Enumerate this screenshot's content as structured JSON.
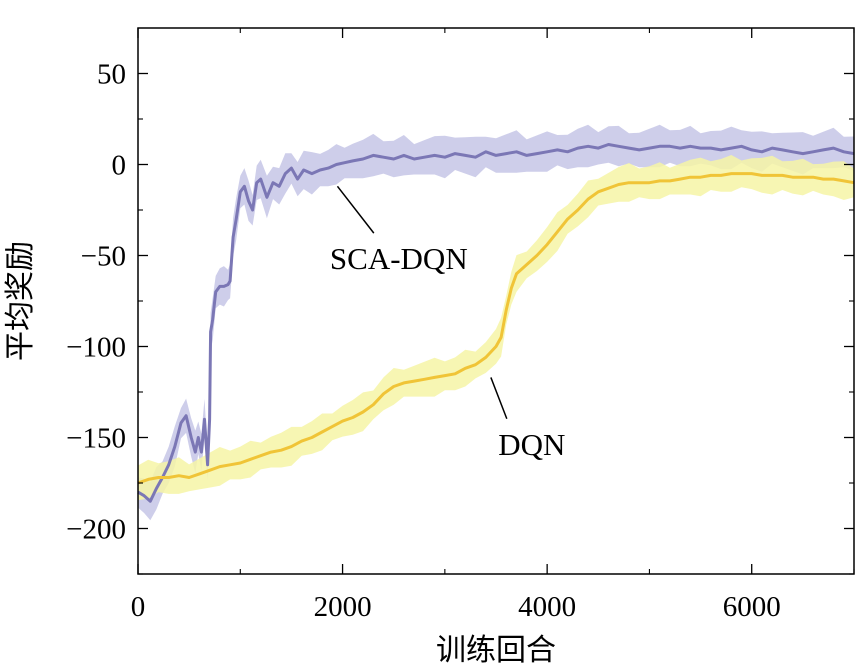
{
  "chart_data": {
    "type": "line",
    "title": "",
    "xlabel": "训练回合",
    "ylabel": "平均奖励",
    "xlim": [
      0,
      7000
    ],
    "ylim": [
      -225,
      75
    ],
    "xticks": [
      0,
      2000,
      4000,
      6000
    ],
    "yticks": [
      50,
      0,
      -50,
      -100,
      -150,
      -200
    ],
    "xtick_labels": [
      "0",
      "2000",
      "4000",
      "6000"
    ],
    "ytick_labels": [
      "50",
      "0",
      "−50",
      "−100",
      "−150",
      "−200"
    ],
    "grid": false,
    "series": [
      {
        "name": "SCA-DQN",
        "color": "#7b77b5",
        "band_color": "#c6c6e6",
        "band_halfwidth": 10,
        "x": [
          0,
          60,
          120,
          180,
          240,
          300,
          360,
          420,
          470,
          520,
          560,
          590,
          620,
          650,
          680,
          700,
          710,
          730,
          760,
          800,
          840,
          880,
          900,
          930,
          960,
          1000,
          1040,
          1080,
          1120,
          1160,
          1200,
          1260,
          1320,
          1380,
          1440,
          1500,
          1560,
          1620,
          1700,
          1780,
          1860,
          1940,
          2020,
          2100,
          2200,
          2300,
          2400,
          2500,
          2600,
          2700,
          2800,
          2900,
          3000,
          3100,
          3200,
          3300,
          3400,
          3500,
          3600,
          3700,
          3800,
          3900,
          4000,
          4100,
          4200,
          4300,
          4400,
          4500,
          4600,
          4700,
          4800,
          4900,
          5000,
          5100,
          5200,
          5300,
          5400,
          5500,
          5600,
          5700,
          5800,
          5900,
          6000,
          6100,
          6200,
          6300,
          6400,
          6500,
          6600,
          6700,
          6800,
          6900,
          7000
        ],
        "y": [
          -180,
          -182,
          -185,
          -178,
          -172,
          -165,
          -155,
          -142,
          -138,
          -150,
          -158,
          -150,
          -158,
          -140,
          -165,
          -140,
          -92,
          -85,
          -70,
          -67,
          -67,
          -66,
          -64,
          -40,
          -30,
          -15,
          -12,
          -20,
          -25,
          -10,
          -8,
          -18,
          -10,
          -12,
          -5,
          -2,
          -8,
          -3,
          -5,
          -3,
          -2,
          0,
          1,
          2,
          3,
          5,
          4,
          3,
          5,
          3,
          4,
          5,
          4,
          6,
          5,
          4,
          7,
          5,
          6,
          7,
          5,
          6,
          7,
          8,
          7,
          9,
          10,
          9,
          11,
          10,
          9,
          8,
          9,
          10,
          10,
          9,
          10,
          9,
          9,
          8,
          9,
          10,
          8,
          7,
          9,
          8,
          7,
          6,
          7,
          8,
          9,
          7,
          6
        ]
      },
      {
        "name": "DQN",
        "color": "#f0c437",
        "band_color": "#f6f4a6",
        "band_halfwidth": 9,
        "x": [
          0,
          100,
          200,
          300,
          400,
          500,
          600,
          700,
          800,
          900,
          1000,
          1100,
          1200,
          1300,
          1400,
          1500,
          1600,
          1700,
          1800,
          1900,
          2000,
          2100,
          2200,
          2300,
          2400,
          2500,
          2600,
          2700,
          2800,
          2900,
          3000,
          3100,
          3200,
          3300,
          3400,
          3500,
          3550,
          3600,
          3650,
          3700,
          3800,
          3900,
          4000,
          4100,
          4200,
          4300,
          4400,
          4500,
          4600,
          4700,
          4800,
          4900,
          5000,
          5100,
          5200,
          5300,
          5400,
          5500,
          5600,
          5700,
          5800,
          5900,
          6000,
          6100,
          6200,
          6300,
          6400,
          6500,
          6600,
          6700,
          6800,
          6900,
          7000
        ],
        "y": [
          -175,
          -173,
          -172,
          -172,
          -171,
          -172,
          -170,
          -168,
          -166,
          -165,
          -164,
          -162,
          -160,
          -158,
          -157,
          -155,
          -152,
          -150,
          -147,
          -144,
          -141,
          -139,
          -136,
          -132,
          -126,
          -122,
          -120,
          -119,
          -118,
          -117,
          -116,
          -115,
          -112,
          -110,
          -106,
          -100,
          -95,
          -80,
          -68,
          -60,
          -55,
          -50,
          -44,
          -37,
          -30,
          -25,
          -19,
          -15,
          -13,
          -11,
          -10,
          -10,
          -10,
          -9,
          -9,
          -8,
          -7,
          -7,
          -6,
          -6,
          -5,
          -5,
          -5,
          -6,
          -6,
          -6,
          -7,
          -7,
          -7,
          -8,
          -8,
          -9,
          -10
        ]
      }
    ],
    "annotations": [
      {
        "text": "SCA-DQN",
        "series": "SCA-DQN",
        "point_x": 1950,
        "point_y": -12,
        "text_x": 2550,
        "text_y": -52
      },
      {
        "text": "DQN",
        "series": "DQN",
        "point_x": 3450,
        "point_y": -117,
        "text_x": 3850,
        "text_y": -154
      }
    ]
  }
}
